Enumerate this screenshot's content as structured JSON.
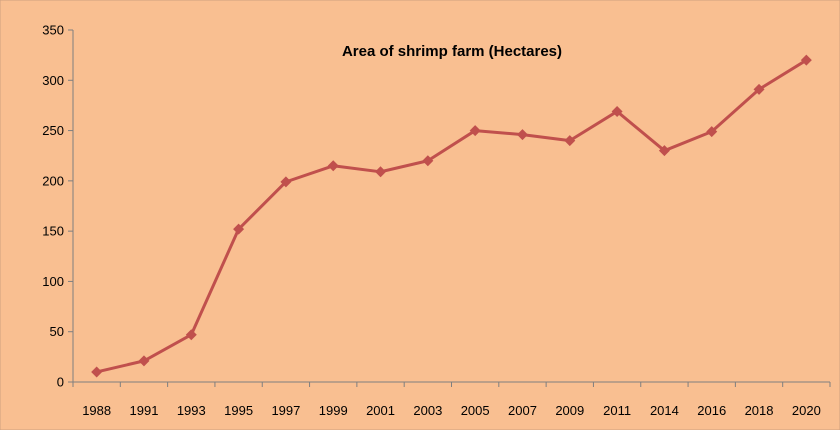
{
  "chart_data": {
    "type": "line",
    "title": "Area of shrimp farm (Hectares)",
    "xlabel": "",
    "ylabel": "",
    "categories": [
      "1988",
      "1991",
      "1993",
      "1995",
      "1997",
      "1999",
      "2001",
      "2003",
      "2005",
      "2007",
      "2009",
      "2011",
      "2014",
      "2016",
      "2018",
      "2020"
    ],
    "series": [
      {
        "values": [
          10,
          21,
          47,
          152,
          199,
          215,
          209,
          220,
          250,
          246,
          240,
          269,
          230,
          249,
          291,
          320
        ]
      }
    ],
    "ylim": [
      0,
      350
    ],
    "yticks": [
      "0",
      "50",
      "100",
      "150",
      "200",
      "250",
      "300",
      "350"
    ],
    "grid": false,
    "legend": "none",
    "colors": {
      "background": "#f9bf91",
      "line": "#c0504d",
      "axis": "#7f7f7f",
      "border": "#d0a080"
    }
  }
}
